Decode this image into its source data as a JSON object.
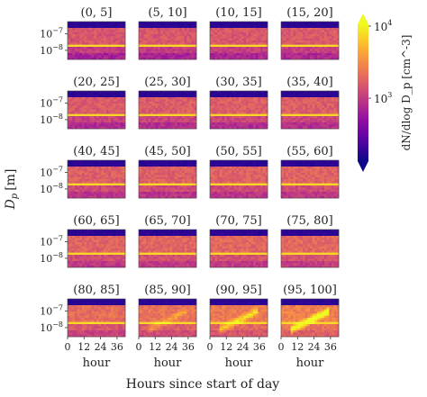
{
  "chart_data": {
    "type": "heatmap",
    "layout": "small-multiples",
    "panels": [
      {
        "title": "(0, 5]",
        "intensity": 0.25
      },
      {
        "title": "(5, 10]",
        "intensity": 0.28
      },
      {
        "title": "(10, 15]",
        "intensity": 0.3
      },
      {
        "title": "(15, 20]",
        "intensity": 0.32
      },
      {
        "title": "(20, 25]",
        "intensity": 0.34
      },
      {
        "title": "(25, 30]",
        "intensity": 0.36
      },
      {
        "title": "(30, 35]",
        "intensity": 0.38
      },
      {
        "title": "(35, 40]",
        "intensity": 0.4
      },
      {
        "title": "(40, 45]",
        "intensity": 0.42
      },
      {
        "title": "(45, 50]",
        "intensity": 0.44
      },
      {
        "title": "(50, 55]",
        "intensity": 0.46
      },
      {
        "title": "(55, 60]",
        "intensity": 0.48
      },
      {
        "title": "(60, 65]",
        "intensity": 0.5
      },
      {
        "title": "(65, 70]",
        "intensity": 0.52
      },
      {
        "title": "(70, 75]",
        "intensity": 0.54
      },
      {
        "title": "(75, 80]",
        "intensity": 0.56
      },
      {
        "title": "(80, 85]",
        "intensity": 0.62
      },
      {
        "title": "(85, 90]",
        "intensity": 0.72
      },
      {
        "title": "(90, 95]",
        "intensity": 0.82
      },
      {
        "title": "(95, 100]",
        "intensity": 0.95
      }
    ],
    "y_ticks": [
      "10",
      "10"
    ],
    "y_tick_exps": [
      "−7",
      "−8"
    ],
    "x_ticks": [
      "0",
      "12",
      "24",
      "36"
    ],
    "x_range": [
      0,
      42
    ],
    "y_scale": "log",
    "ylabel_symbol": "D",
    "ylabel_sub": "p",
    "ylabel_unit": "[m]",
    "panel_xlabel": "hour",
    "xlabel": "Hours since start of day",
    "colorbar": {
      "label": "dN/dlog D_p [cm^-3]",
      "scale": "log",
      "ticks": [
        {
          "base": "10",
          "exp": "4"
        },
        {
          "base": "10",
          "exp": "3"
        }
      ],
      "colormap": "plasma",
      "extend": "both"
    },
    "colors": {
      "cmap_low": "#0d0887",
      "cmap_mid": "#cc4778",
      "cmap_high": "#f0f921"
    }
  }
}
